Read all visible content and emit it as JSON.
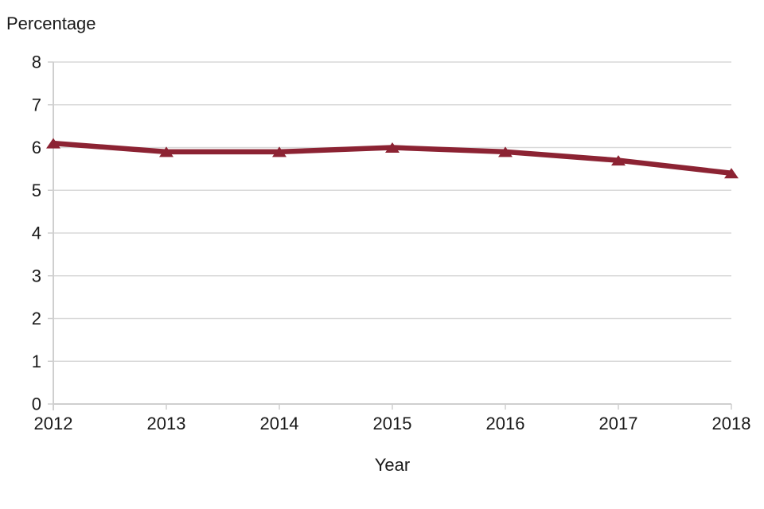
{
  "chart_data": {
    "type": "line",
    "title": "",
    "ylabel": "Percentage",
    "xlabel": "Year",
    "categories": [
      "2012",
      "2013",
      "2014",
      "2015",
      "2016",
      "2017",
      "2018"
    ],
    "series": [
      {
        "name": "Percentage",
        "values": [
          6.1,
          5.9,
          5.9,
          6.0,
          5.9,
          5.7,
          5.4
        ],
        "color": "#8C2333",
        "marker": "triangle-up"
      }
    ],
    "ylim": [
      0,
      8
    ],
    "ytick_step": 1,
    "grid": "horizontal-gridlines",
    "legend": "none",
    "styles": {
      "gridline_color": "#D9D9D9",
      "axis_color": "#CFCFCF",
      "text_color": "#1A1A1A",
      "background": "#FFFFFF",
      "line_width": 6.5,
      "marker_width": 18,
      "marker_height": 13
    }
  }
}
